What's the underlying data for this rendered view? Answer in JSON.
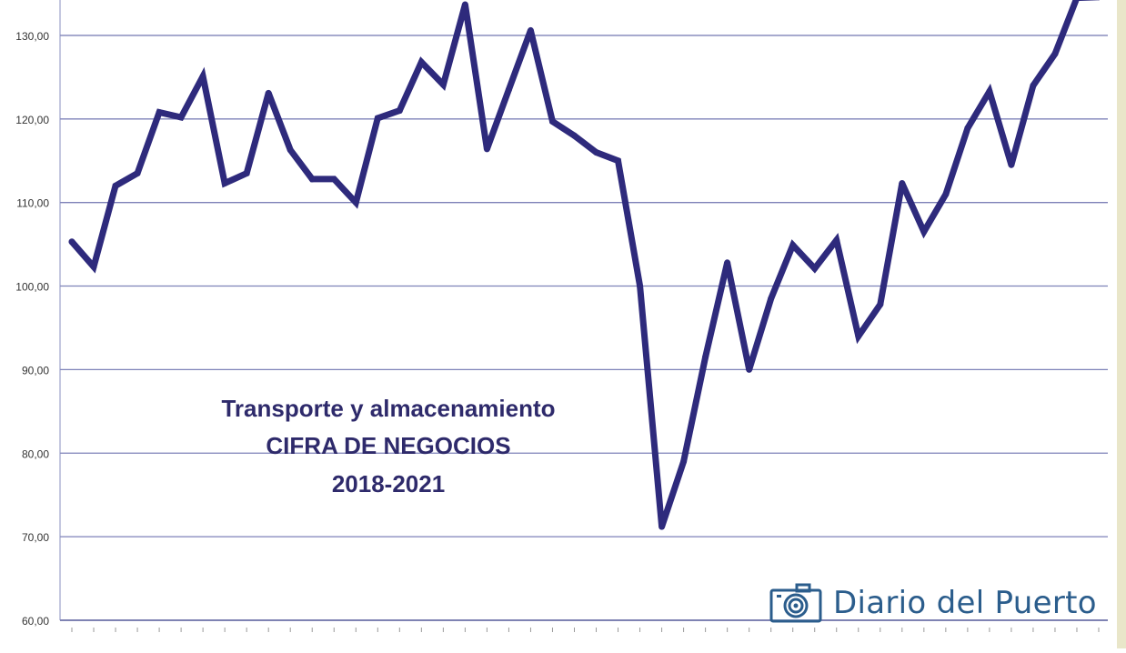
{
  "chart_data": {
    "type": "line",
    "title_lines": [
      "Transporte y almacenamiento",
      "CIFRA DE NEGOCIOS",
      "2018-2021"
    ],
    "ylim": [
      60,
      135
    ],
    "y_ticks": [
      "60,00",
      "70,00",
      "80,00",
      "90,00",
      "100,00",
      "110,00",
      "120,00",
      "130,00"
    ],
    "grid": true,
    "line_color": "#2e2a7c",
    "series": [
      {
        "values": [
          105.3,
          102.3,
          112.0,
          113.5,
          120.8,
          120.2,
          125.1,
          112.3,
          113.5,
          123.1,
          116.3,
          112.8,
          112.8,
          110.0,
          120.1,
          121.0,
          126.8,
          124.1,
          133.7,
          116.4,
          123.5,
          130.6,
          119.7,
          118.0,
          116.0,
          115.0,
          100.0,
          71.2,
          79.0,
          91.5,
          102.8,
          90.0,
          98.5,
          104.9,
          102.1,
          105.5,
          94.0,
          97.8,
          112.3,
          106.5,
          111.0,
          118.9,
          123.3,
          114.5,
          124.0,
          127.8,
          134.5,
          134.6
        ]
      }
    ]
  },
  "watermark": {
    "text": "Diario del Puerto",
    "icon": "camera-icon",
    "color": "#2b5d8c"
  }
}
